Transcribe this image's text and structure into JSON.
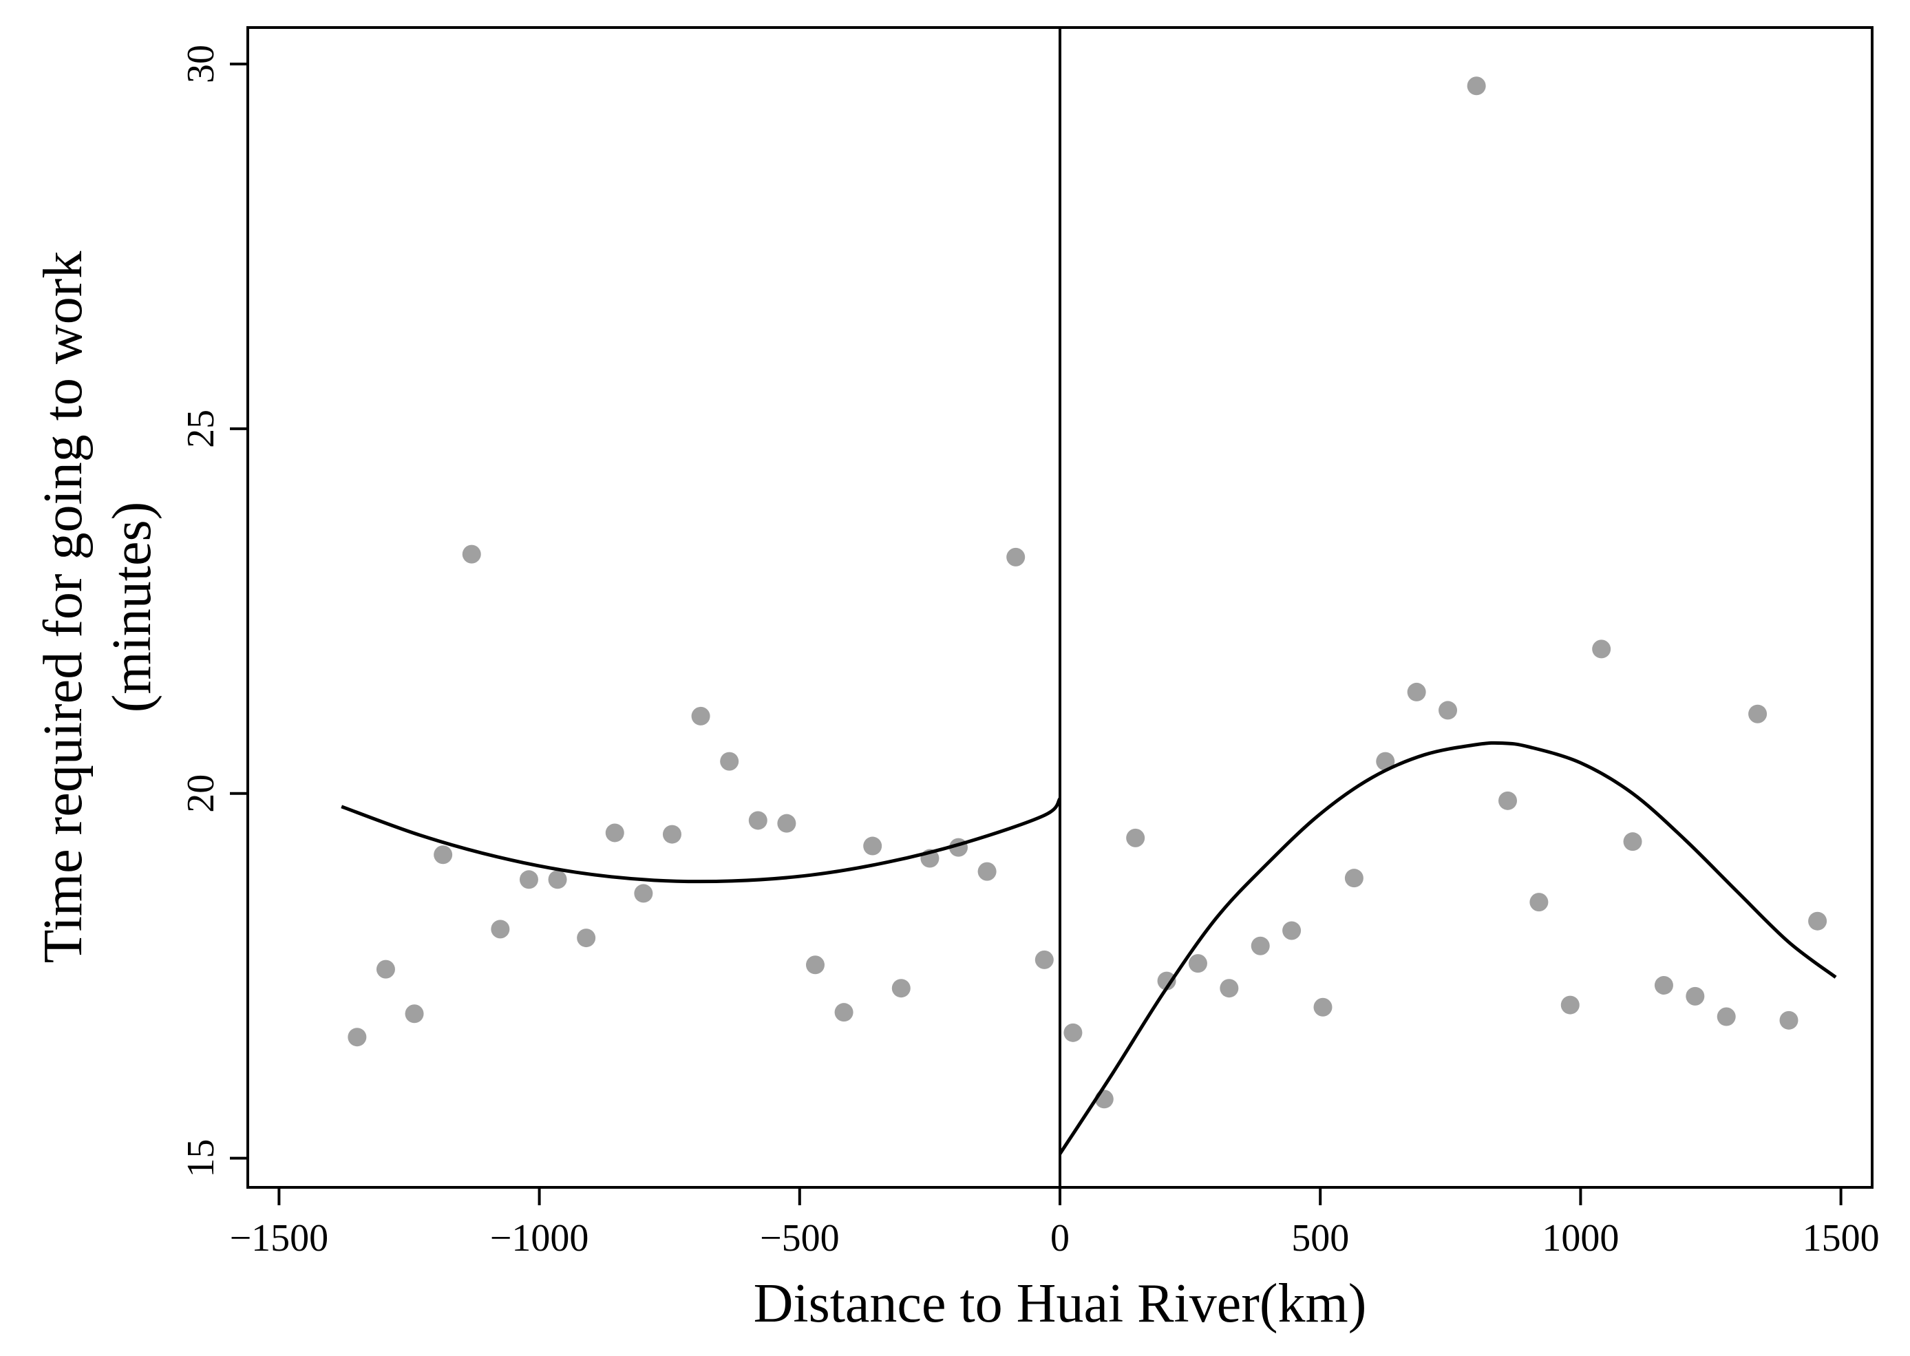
{
  "chart_data": {
    "type": "scatter",
    "xlabel": "Distance to Huai River(km)",
    "ylabel_lines": [
      "Time required for going to work",
      "(minutes)"
    ],
    "xlim": [
      -1560,
      1560
    ],
    "ylim": [
      14.6,
      30.5
    ],
    "xticks": [
      -1500,
      -1000,
      -500,
      0,
      500,
      1000,
      1500
    ],
    "xtick_labels": [
      "−1500",
      "−1000",
      "−500",
      "0",
      "500",
      "1000",
      "1500"
    ],
    "yticks": [
      15,
      20,
      25,
      30
    ],
    "ytick_labels": [
      "15",
      "20",
      "25",
      "30"
    ],
    "cutoff_x": 0,
    "points": [
      [
        -1350,
        16.66
      ],
      [
        -1295,
        17.59
      ],
      [
        -1240,
        16.98
      ],
      [
        -1185,
        19.16
      ],
      [
        -1130,
        23.28
      ],
      [
        -1075,
        18.14
      ],
      [
        -1020,
        18.82
      ],
      [
        -965,
        18.82
      ],
      [
        -910,
        18.02
      ],
      [
        -855,
        19.46
      ],
      [
        -800,
        18.63
      ],
      [
        -745,
        19.44
      ],
      [
        -690,
        21.06
      ],
      [
        -635,
        20.44
      ],
      [
        -580,
        19.63
      ],
      [
        -525,
        19.59
      ],
      [
        -470,
        17.65
      ],
      [
        -415,
        17.0
      ],
      [
        -360,
        19.28
      ],
      [
        -305,
        17.33
      ],
      [
        -250,
        19.11
      ],
      [
        -195,
        19.26
      ],
      [
        -140,
        18.93
      ],
      [
        -85,
        23.24
      ],
      [
        -30,
        17.72
      ],
      [
        25,
        16.72
      ],
      [
        85,
        15.81
      ],
      [
        145,
        19.39
      ],
      [
        205,
        17.43
      ],
      [
        265,
        17.67
      ],
      [
        325,
        17.33
      ],
      [
        385,
        17.91
      ],
      [
        445,
        18.12
      ],
      [
        505,
        17.07
      ],
      [
        565,
        18.84
      ],
      [
        625,
        20.44
      ],
      [
        685,
        21.39
      ],
      [
        745,
        21.14
      ],
      [
        800,
        29.7
      ],
      [
        860,
        19.9
      ],
      [
        920,
        18.51
      ],
      [
        980,
        17.1
      ],
      [
        1040,
        21.98
      ],
      [
        1100,
        19.34
      ],
      [
        1160,
        17.37
      ],
      [
        1220,
        17.22
      ],
      [
        1280,
        16.94
      ],
      [
        1340,
        21.09
      ],
      [
        1400,
        16.89
      ],
      [
        1455,
        18.25
      ]
    ],
    "fits": [
      {
        "x": [
          -1380,
          -1230,
          -1080,
          -930,
          -780,
          -630,
          -480,
          -330,
          -180,
          -30,
          0
        ],
        "y": [
          19.82,
          19.43,
          19.13,
          18.92,
          18.81,
          18.8,
          18.88,
          19.06,
          19.33,
          19.7,
          19.93
        ]
      },
      {
        "x": [
          0,
          100,
          200,
          300,
          400,
          500,
          600,
          700,
          800,
          850,
          900,
          1000,
          1100,
          1200,
          1300,
          1400,
          1490
        ],
        "y": [
          15.06,
          16.15,
          17.28,
          18.29,
          19.05,
          19.72,
          20.22,
          20.53,
          20.67,
          20.69,
          20.64,
          20.42,
          20.0,
          19.37,
          18.66,
          17.96,
          17.48
        ]
      }
    ]
  }
}
